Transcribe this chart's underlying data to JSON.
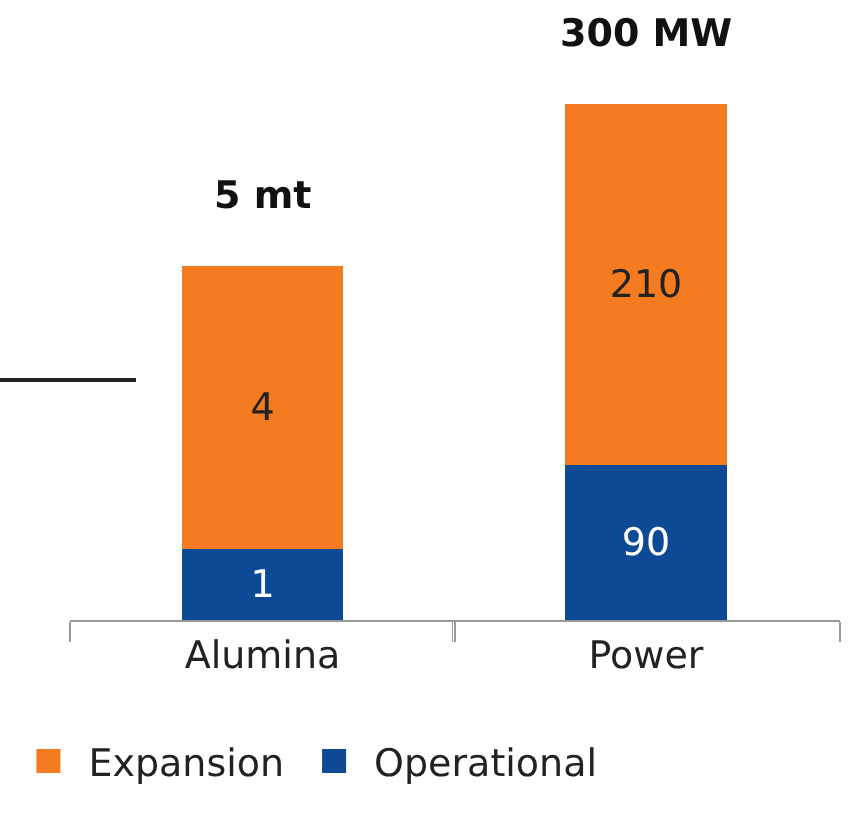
{
  "chart_data": [
    {
      "type": "bar",
      "stacked": true,
      "data_labels": true,
      "categories": [
        "Alumina"
      ],
      "series": [
        {
          "name": "Operational",
          "color": "#0d4a96",
          "values": [
            1
          ]
        },
        {
          "name": "Expansion",
          "color": "#f47b20",
          "values": [
            4
          ]
        }
      ],
      "totals": [
        "5 mt"
      ],
      "legend": "bottom"
    },
    {
      "type": "bar",
      "stacked": true,
      "data_labels": true,
      "categories": [
        "Power"
      ],
      "series": [
        {
          "color": "#0d4a96",
          "values": [
            90
          ]
        },
        {
          "color": "#f47b20",
          "values": [
            210
          ]
        }
      ],
      "totals": [
        "300 MW"
      ]
    }
  ]
}
